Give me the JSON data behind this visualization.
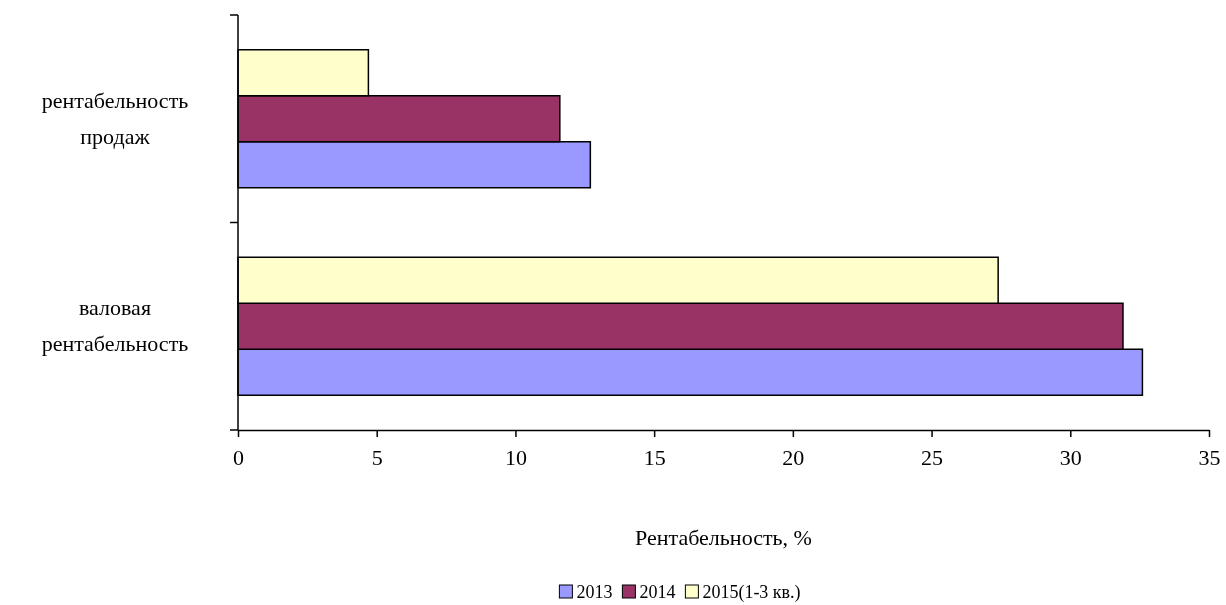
{
  "chart_data": {
    "type": "bar",
    "orientation": "horizontal",
    "categories": [
      "рентабельность продаж",
      "валовая рентабельность"
    ],
    "series": [
      {
        "name": "2013",
        "color": "#9999ff",
        "values": [
          12.7,
          32.6
        ]
      },
      {
        "name": "2014",
        "color": "#993366",
        "values": [
          11.6,
          31.9
        ]
      },
      {
        "name": "2015(1-3 кв.)",
        "color": "#ffffcc",
        "values": [
          4.7,
          27.4
        ]
      }
    ],
    "xlabel": "Рентабельность, %",
    "xlim": [
      0,
      35
    ],
    "xticks": [
      0,
      5,
      10,
      15,
      20,
      25,
      30,
      35
    ],
    "legend": "bottom",
    "grid": false
  }
}
